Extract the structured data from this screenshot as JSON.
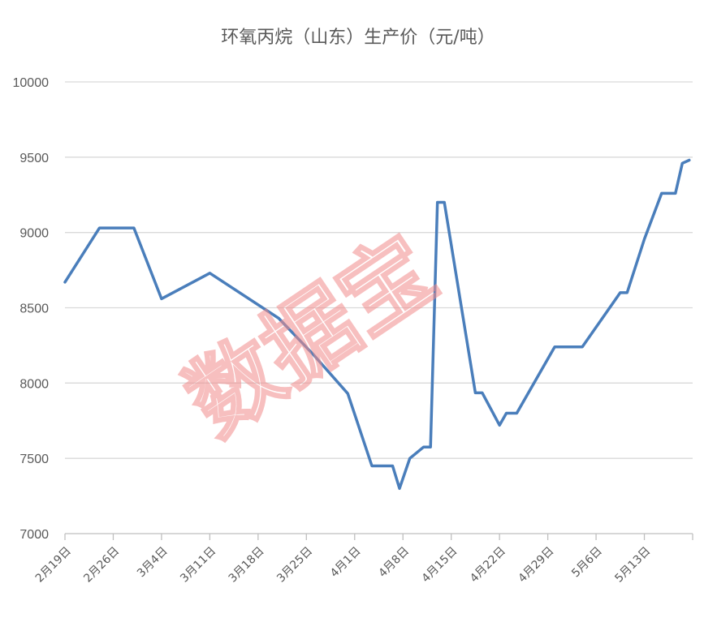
{
  "chart_data": {
    "type": "line",
    "title": "环氧丙烷（山东）生产价（元/吨）",
    "watermark": "数据宝",
    "ylim": [
      7000,
      10000
    ],
    "y_ticks": [
      "7000",
      "7500",
      "8000",
      "8500",
      "9000",
      "9500",
      "10000"
    ],
    "y_tick_values": [
      7000,
      7500,
      8000,
      8500,
      9000,
      9500,
      10000
    ],
    "x_tick_labels": [
      "2月19日",
      "2月26日",
      "3月4日",
      "3月11日",
      "3月18日",
      "3月25日",
      "4月1日",
      "4月8日",
      "4月15日",
      "4月22日",
      "4月29日",
      "5月6日",
      "5月13日"
    ],
    "x_tick_days": [
      0,
      7,
      14,
      21,
      28,
      35,
      42,
      49,
      56,
      63,
      70,
      77,
      84
    ],
    "xlim_days": [
      0,
      91
    ],
    "grid": true,
    "legend": "none",
    "series": [
      {
        "color": "#4a7ebb",
        "points": [
          [
            0,
            8670
          ],
          [
            5,
            9030
          ],
          [
            10,
            9030
          ],
          [
            14,
            8560
          ],
          [
            21,
            8730
          ],
          [
            31,
            8430
          ],
          [
            36,
            8190
          ],
          [
            41,
            7930
          ],
          [
            44.5,
            7450
          ],
          [
            47.5,
            7450
          ],
          [
            48.5,
            7300
          ],
          [
            50,
            7500
          ],
          [
            52,
            7575
          ],
          [
            53,
            7575
          ],
          [
            54,
            9200
          ],
          [
            55,
            9200
          ],
          [
            59.5,
            7935
          ],
          [
            60.5,
            7935
          ],
          [
            63,
            7720
          ],
          [
            64,
            7800
          ],
          [
            65.5,
            7800
          ],
          [
            71,
            8240
          ],
          [
            75,
            8240
          ],
          [
            80.5,
            8600
          ],
          [
            81.5,
            8600
          ],
          [
            84,
            8955
          ],
          [
            86.5,
            9260
          ],
          [
            88.5,
            9260
          ],
          [
            89.5,
            9460
          ],
          [
            90.5,
            9480
          ]
        ]
      }
    ]
  }
}
